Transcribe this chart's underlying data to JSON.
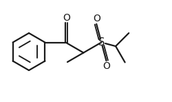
{
  "bg_color": "#ffffff",
  "line_color": "#1a1a1a",
  "line_width": 1.6,
  "figsize": [
    2.5,
    1.48
  ],
  "dpi": 100,
  "xlim": [
    0.0,
    2.5
  ],
  "ylim": [
    0.0,
    1.48
  ]
}
